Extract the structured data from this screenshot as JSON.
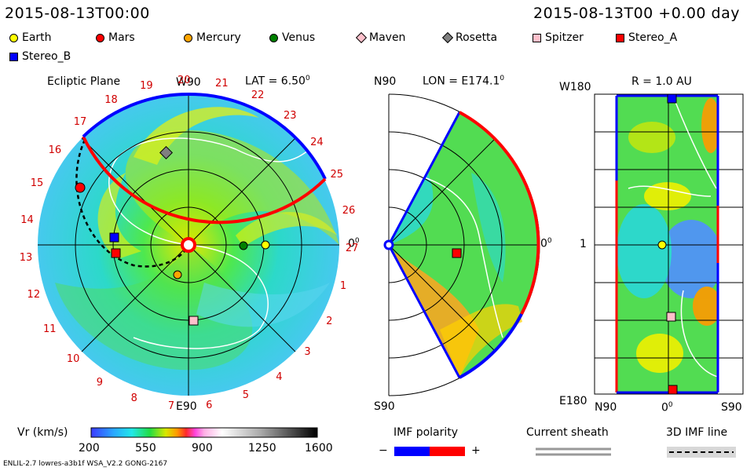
{
  "header": {
    "datetime": "2015-08-13T00:00",
    "offset": "2015-08-13T00 +0.00 day"
  },
  "legend": [
    {
      "label": "Earth",
      "color": "#ffff00",
      "shape": "circle"
    },
    {
      "label": "Mars",
      "color": "#ff0000",
      "shape": "circle"
    },
    {
      "label": "Mercury",
      "color": "#ffa500",
      "shape": "circle"
    },
    {
      "label": "Venus",
      "color": "#008000",
      "shape": "circle"
    },
    {
      "label": "Maven",
      "color": "#ffc0cb",
      "shape": "diamond"
    },
    {
      "label": "Rosetta",
      "color": "#808080",
      "shape": "diamond"
    },
    {
      "label": "Spitzer",
      "color": "#ffc0cb",
      "shape": "square"
    },
    {
      "label": "Stereo_A",
      "color": "#ff0000",
      "shape": "square"
    },
    {
      "label": "Stereo_B",
      "color": "#0000ff",
      "shape": "square"
    }
  ],
  "panel1": {
    "title": "Ecliptic Plane",
    "lat": "LAT = 6.50",
    "lat_sup": "0",
    "top": "W90",
    "bottom": "E90",
    "right": "0",
    "right_sup": "0",
    "carrington": [
      "19",
      "20",
      "21",
      "22",
      "23",
      "24",
      "25",
      "26",
      "27",
      "1",
      "2",
      "3",
      "4",
      "5",
      "6",
      "7",
      "8",
      "9",
      "10",
      "11",
      "12",
      "13",
      "14",
      "15",
      "16",
      "17",
      "18"
    ]
  },
  "panel2": {
    "top": "N90",
    "bottom": "S90",
    "lon": "LON = E174.1",
    "lon_sup": "0",
    "right": "0",
    "right_sup": "0"
  },
  "panel3": {
    "title": "R = 1.0 AU",
    "top_left": "W180",
    "mid_left": "1",
    "bottom_left": "E180",
    "x_left": "N90",
    "x_mid": "0",
    "x_mid_sup": "0",
    "x_right": "S90"
  },
  "colorbar": {
    "label": "Vr (km/s)",
    "ticks": [
      "200",
      "550",
      "900",
      "1250",
      "1600"
    ]
  },
  "imf": {
    "label": "IMF polarity",
    "minus": "−",
    "plus": "+",
    "neg_color": "#0000ff",
    "pos_color": "#ff0000"
  },
  "sheath": {
    "label": "Current sheath"
  },
  "imf3d": {
    "label": "3D IMF line"
  },
  "footer": {
    "model": "ENLIL-2.7 lowres-a3b1f WSA_V2.2 GONG-2167"
  }
}
